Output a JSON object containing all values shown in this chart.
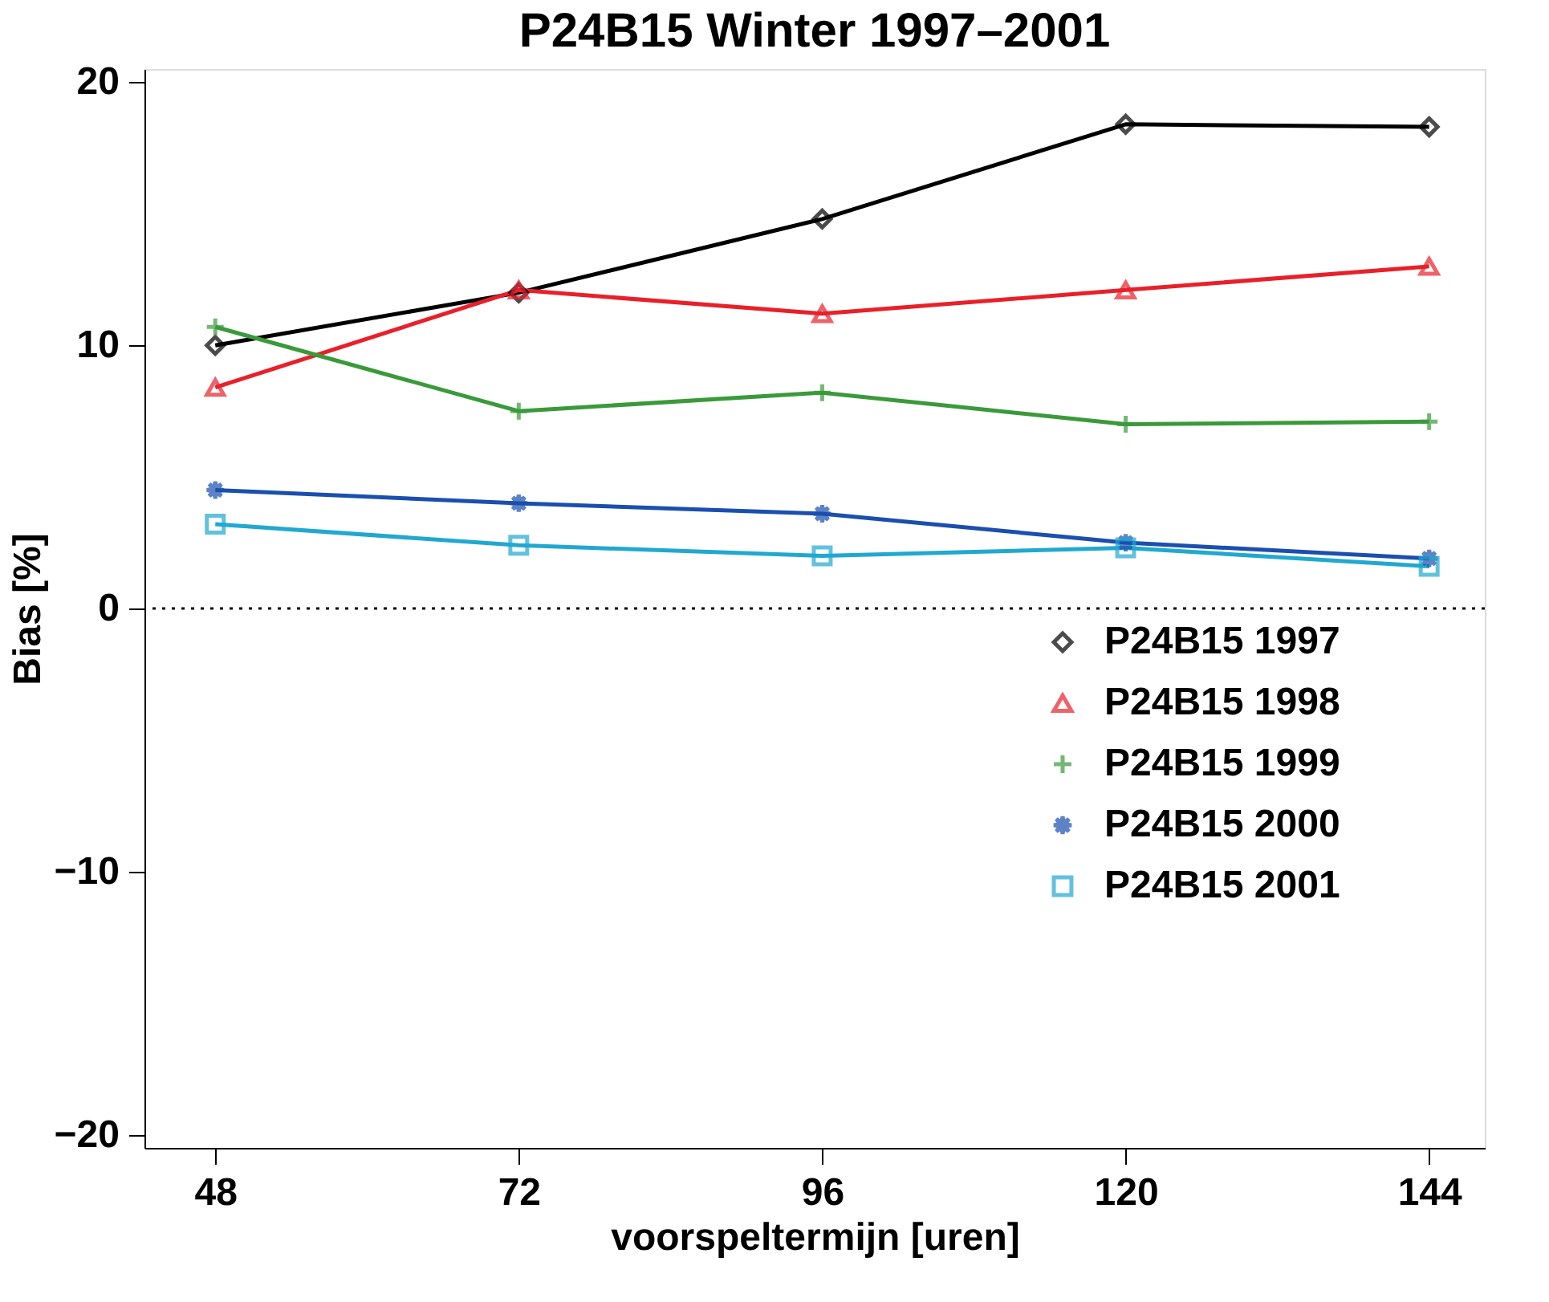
{
  "chart_data": {
    "type": "line",
    "title": "P24B15 Winter 1997–2001",
    "xlabel": "voorspeltermijn [uren]",
    "ylabel": "Bias [%]",
    "x": [
      48,
      72,
      96,
      120,
      144
    ],
    "xlim": [
      42.4,
      148.4
    ],
    "xticks": [
      48,
      72,
      96,
      120,
      144
    ],
    "ylim": [
      -20.5,
      20.5
    ],
    "yticks": [
      {
        "value": -20,
        "label": "−20"
      },
      {
        "value": -10,
        "label": "−10"
      },
      0,
      10,
      20
    ],
    "grid": false,
    "legend": "right",
    "line_style": "solid",
    "ref_lines": [
      {
        "axis": "y",
        "value": 0,
        "line_style": "dotted",
        "color": "#000000"
      }
    ],
    "series": [
      {
        "name": "P24B15 1997",
        "color": "#000000",
        "marker": "diamond",
        "values": [
          10.0,
          12.0,
          14.8,
          18.4,
          18.3
        ]
      },
      {
        "name": "P24B15 1998",
        "color": "#e8202a",
        "marker": "triangle",
        "values": [
          8.4,
          12.1,
          11.2,
          12.1,
          13.0
        ]
      },
      {
        "name": "P24B15 1999",
        "color": "#3a9a3a",
        "marker": "cross",
        "values": [
          10.7,
          7.5,
          8.2,
          7.0,
          7.1
        ]
      },
      {
        "name": "P24B15 2000",
        "color": "#1a4fb0",
        "marker": "star",
        "values": [
          4.5,
          4.0,
          3.6,
          2.5,
          1.9
        ]
      },
      {
        "name": "P24B15 2001",
        "color": "#20a8d0",
        "marker": "square",
        "values": [
          3.2,
          2.4,
          2.0,
          2.3,
          1.6
        ]
      }
    ]
  }
}
